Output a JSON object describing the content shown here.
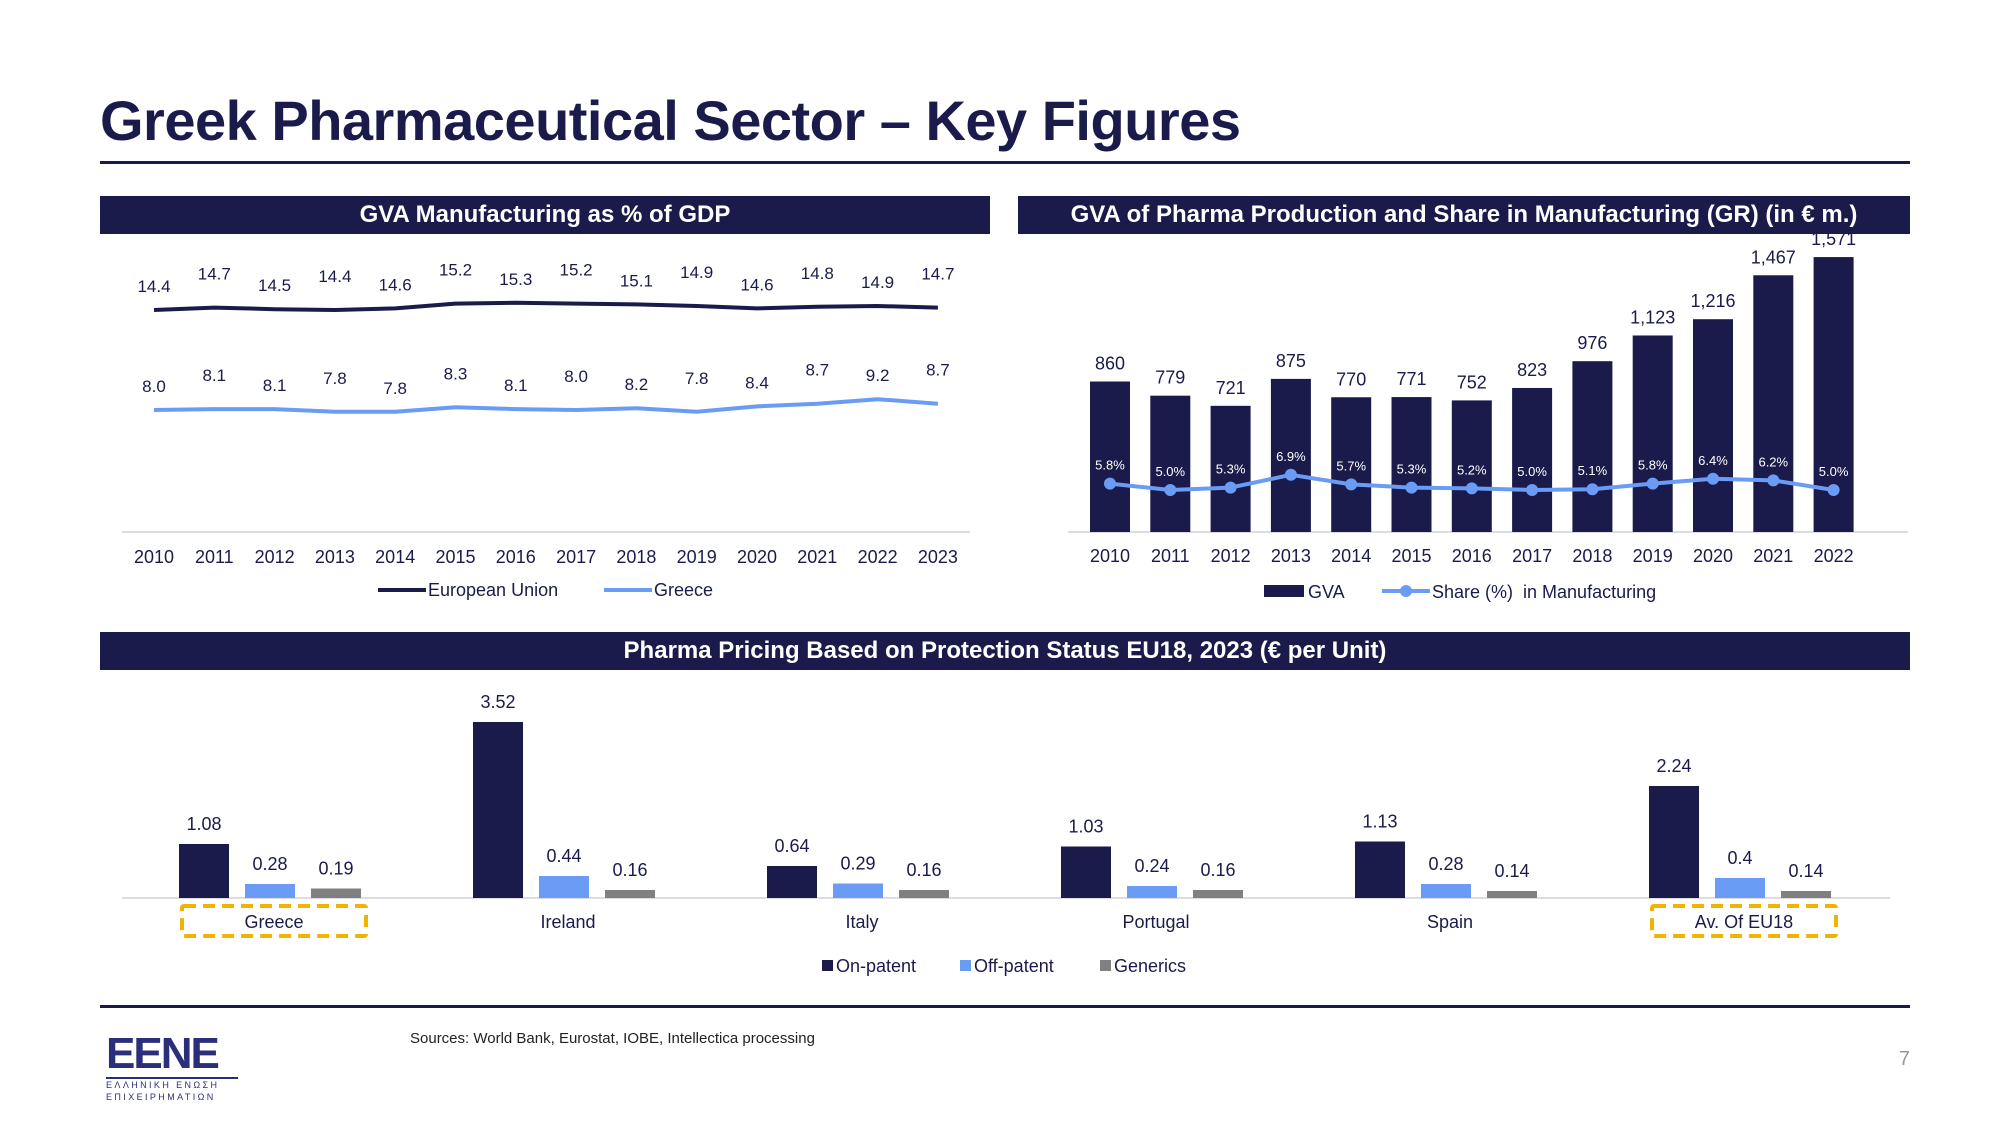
{
  "page": {
    "title": "Greek Pharmaceutical Sector – Key Figures",
    "sources": "Sources: World Bank, Eurostat, IOBE, Intellectica processing",
    "page_number": "7",
    "logo": {
      "mark": "EENE",
      "line1": "ΕΛΛΗΝΙΚΗ ΕΝΩΣΗ",
      "line2": "ΕΠΙΧΕΙΡΗΜΑΤΙΩΝ"
    }
  },
  "colors": {
    "navy": "#1a1b4b",
    "light_blue": "#6b9cf5",
    "grey": "#808080",
    "highlight": "#f0b400"
  },
  "chart_data": [
    {
      "id": "gva_manufacturing",
      "type": "line",
      "title": "GVA Manufacturing as % of GDP",
      "x": [
        "2010",
        "2011",
        "2012",
        "2013",
        "2014",
        "2015",
        "2016",
        "2017",
        "2018",
        "2019",
        "2020",
        "2021",
        "2022",
        "2023"
      ],
      "series": [
        {
          "name": "European Union",
          "color": "#1a1b4b",
          "values": [
            14.4,
            14.7,
            14.5,
            14.4,
            14.6,
            15.2,
            15.3,
            15.2,
            15.1,
            14.9,
            14.6,
            14.8,
            14.9,
            14.7
          ],
          "labels": [
            "14.4",
            "14.7",
            "14.5",
            "14.4",
            "14.6",
            "15.2",
            "15.3",
            "15.2",
            "15.1",
            "14.9",
            "14.6",
            "14.8",
            "14.9",
            "14.7"
          ]
        },
        {
          "name": "Greece",
          "color": "#6b9cf5",
          "values": [
            8.0,
            8.1,
            8.1,
            7.8,
            7.8,
            8.3,
            8.1,
            8.0,
            8.2,
            7.8,
            8.4,
            8.7,
            9.2,
            8.7
          ],
          "labels": [
            "8.0",
            "8.1",
            "8.1",
            "7.8",
            "7.8",
            "8.3",
            "8.1",
            "8.0",
            "8.2",
            "7.8",
            "8.4",
            "8.7",
            "9.2",
            "8.7"
          ]
        }
      ],
      "grid": false,
      "legend": "bottom"
    },
    {
      "id": "gva_pharma",
      "type": "bar",
      "title": "GVA of Pharma Production and Share in Manufacturing (GR) (in € m.)",
      "categories": [
        "2010",
        "2011",
        "2012",
        "2013",
        "2014",
        "2015",
        "2016",
        "2017",
        "2018",
        "2019",
        "2020",
        "2021",
        "2022"
      ],
      "series": [
        {
          "name": "GVA",
          "kind": "bar",
          "color": "#1a1b4b",
          "values": [
            860,
            779,
            721,
            875,
            770,
            771,
            752,
            823,
            976,
            1123,
            1216,
            1467,
            1571
          ],
          "labels": [
            "860",
            "779",
            "721",
            "875",
            "770",
            "771",
            "752",
            "823",
            "976",
            "1,123",
            "1,216",
            "1,467",
            "1,571"
          ]
        },
        {
          "name": "Share (%)  in Manufacturing",
          "kind": "line",
          "color": "#6b9cf5",
          "values": [
            5.8,
            5.0,
            5.3,
            6.9,
            5.7,
            5.3,
            5.2,
            5.0,
            5.1,
            5.8,
            6.4,
            6.2,
            5.0
          ],
          "labels": [
            "5.8%",
            "5.0%",
            "5.3%",
            "6.9%",
            "5.7%",
            "5.3%",
            "5.2%",
            "5.0%",
            "5.1%",
            "5.8%",
            "6.4%",
            "6.2%",
            "5.0%"
          ]
        }
      ],
      "grid": false,
      "legend": "bottom"
    },
    {
      "id": "pharma_pricing",
      "type": "bar",
      "title": "Pharma Pricing Based on Protection Status EU18, 2023 (€ per Unit)",
      "categories": [
        "Greece",
        "Ireland",
        "Italy",
        "Portugal",
        "Spain",
        "Av. Of EU18"
      ],
      "highlighted_categories": [
        "Greece",
        "Av. Of EU18"
      ],
      "series": [
        {
          "name": "On-patent",
          "color": "#1a1b4b",
          "values": [
            1.08,
            3.52,
            0.64,
            1.03,
            1.13,
            2.24
          ],
          "labels": [
            "1.08",
            "3.52",
            "0.64",
            "1.03",
            "1.13",
            "2.24"
          ]
        },
        {
          "name": "Off-patent",
          "color": "#6b9cf5",
          "values": [
            0.28,
            0.44,
            0.29,
            0.24,
            0.28,
            0.4
          ],
          "labels": [
            "0.28",
            "0.44",
            "0.29",
            "0.24",
            "0.28",
            "0.4"
          ]
        },
        {
          "name": "Generics",
          "color": "#808080",
          "values": [
            0.19,
            0.16,
            0.16,
            0.16,
            0.14,
            0.14
          ],
          "labels": [
            "0.19",
            "0.16",
            "0.16",
            "0.16",
            "0.14",
            "0.14"
          ]
        }
      ],
      "grid": false,
      "legend": "bottom"
    }
  ]
}
